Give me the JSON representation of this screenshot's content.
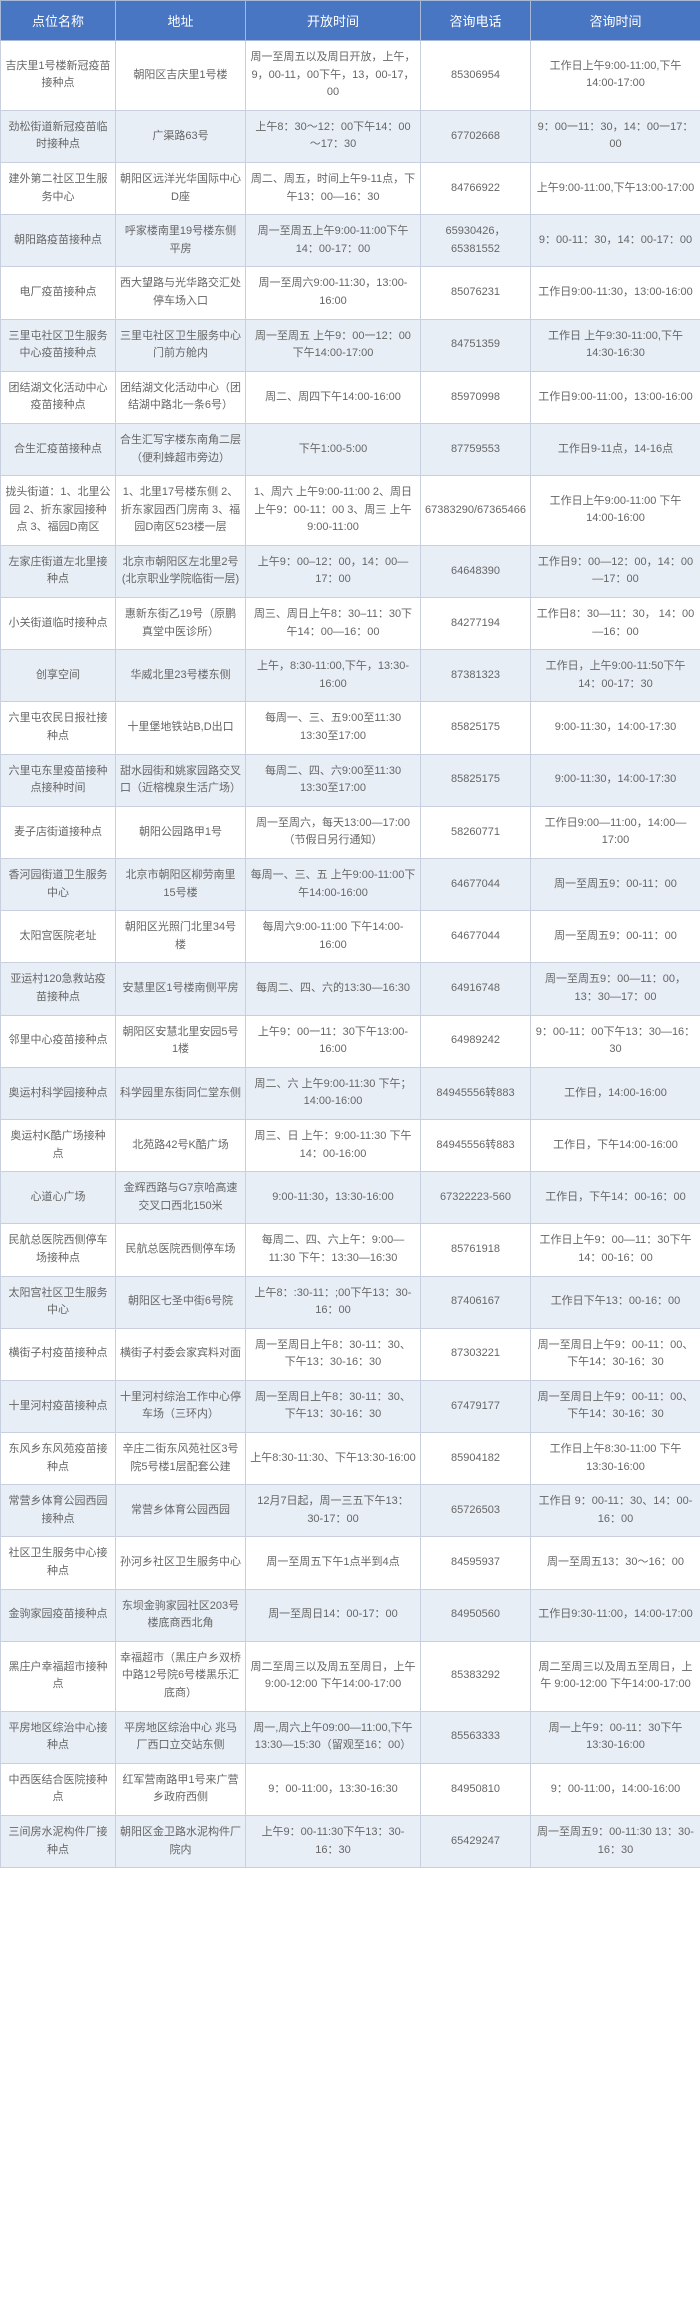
{
  "columns": [
    "点位名称",
    "地址",
    "开放时间",
    "咨询电话",
    "咨询时间"
  ],
  "rows": [
    [
      "吉庆里1号楼新冠疫苗接种点",
      "朝阳区吉庆里1号楼",
      "周一至周五以及周日开放，上午，9，00-11，00下午，13，00-17，00",
      "85306954",
      "工作日上午9:00-11:00,下午14:00-17:00"
    ],
    [
      "劲松街道新冠疫苗临时接种点",
      "广渠路63号",
      "上午8：30～12：00下午14：00～17：30",
      "67702668",
      "9：00一11：30，14：00一17：00"
    ],
    [
      "建外第二社区卫生服务中心",
      "朝阳区远洋光华国际中心D座",
      "周二、周五，时间上午9-11点，下午13：00—16：30",
      "84766922",
      "上午9:00-11:00,下午13:00-17:00"
    ],
    [
      "朝阳路疫苗接种点",
      "呼家楼南里19号楼东侧平房",
      "周一至周五上午9:00-11:00下午14：00-17：00",
      "65930426，65381552",
      "9：00-11：30，14：00-17：00"
    ],
    [
      "电厂疫苗接种点",
      "西大望路与光华路交汇处停车场入口",
      "周一至周六9:00-11:30，13:00-16:00",
      "85076231",
      "工作日9:00-11:30，13:00-16:00"
    ],
    [
      "三里屯社区卫生服务中心疫苗接种点",
      "三里屯社区卫生服务中心门前方舱内",
      "周一至周五 上午9：00一12：00下午14:00-17:00",
      "84751359",
      "工作日 上午9:30-11:00,下午14:30-16:30"
    ],
    [
      "团结湖文化活动中心疫苗接种点",
      "团结湖文化活动中心（团结湖中路北一条6号）",
      "周二、周四下午14:00-16:00",
      "85970998",
      "工作日9:00-11:00，13:00-16:00"
    ],
    [
      "合生汇疫苗接种点",
      "合生汇写字楼东南角二层（便利蜂超市旁边）",
      "下午1:00-5:00",
      "87759553",
      "工作日9-11点，14-16点"
    ],
    [
      "拢头街道：1、北里公园 2、折东家园接种点 3、福园D南区",
      "1、北里17号楼东侧 2、折东家园西门房南 3、福园D南区523楼一层",
      "1、周六 上午9:00-11:00  2、周日 上午9：00-11：00  3、周三 上午9:00-11:00",
      "67383290/67365466",
      "工作日上午9:00-11:00 下午14:00-16:00"
    ],
    [
      "左家庄街道左北里接种点",
      "北京市朝阳区左北里2号(北京职业学院临街一层)",
      "上午9：00–12：00，14：00—17：00",
      "64648390",
      "工作日9：00—12：00，14：00—17：00"
    ],
    [
      "小关街道临时接种点",
      "惠新东街乙19号（原鹏真堂中医诊所）",
      "周三、周日上午8：30–11：30下午14：00—16：00",
      "84277194",
      "工作日8：30—11：30，  14：00—16：00"
    ],
    [
      "创享空间",
      "华威北里23号楼东侧",
      "上午，8:30-11:00,下午，13:30-16:00",
      "87381323",
      "工作日，上午9:00-11:50下午14：00-17：30"
    ],
    [
      "六里屯农民日报社接种点",
      "十里堡地铁站B,D出口",
      "每周一、三、五9:00至11:30 13:30至17:00",
      "85825175",
      "9:00-11:30，14:00-17:30"
    ],
    [
      "六里屯东里疫苗接种点接种时间",
      "甜水园街和姚家园路交叉口（近榕槐泉生活广场）",
      "每周二、四、六9:00至11:30 13:30至17:00",
      "85825175",
      "9:00-11:30，14:00-17:30"
    ],
    [
      "麦子店街道接种点",
      "朝阳公园路甲1号",
      "周一至周六，每天13:00—17:00（节假日另行通知）",
      "58260771",
      "工作日9:00—11:00，14:00—17:00"
    ],
    [
      "香河园街道卫生服务中心",
      "北京市朝阳区柳劳南里15号楼",
      "每周一、三、五 上午9:00-11:00下午14:00-16:00",
      "64677044",
      "周一至周五9：00-11：00"
    ],
    [
      "太阳宫医院老址",
      "朝阳区光照门北里34号楼",
      "每周六9:00-11:00 下午14:00-16:00",
      "64677044",
      "周一至周五9：00-11：00"
    ],
    [
      "亚运村120急救站疫苗接种点",
      "安慧里区1号楼南侧平房",
      "每周二、四、六的13:30—16:30",
      "64916748",
      "周一至周五9：00—11：00，13：30—17：00"
    ],
    [
      "邻里中心疫苗接种点",
      "朝阳区安慧北里安园5号1楼",
      "上午9：00一11：30下午13:00-16:00",
      "64989242",
      "9：00-11：00下午13：30—16：30"
    ],
    [
      "奥运村科学园接种点",
      "科学园里东街同仁堂东侧",
      "周二、六 上午9:00-11:30 下午；14:00-16:00",
      "84945556转883",
      "工作日，14:00-16:00"
    ],
    [
      "奥运村K酷广场接种点",
      "北苑路42号K酷广场",
      "周三、日 上午：9:00-11:30 下午14：00-16:00",
      "84945556转883",
      "工作日，下午14:00-16:00"
    ],
    [
      "心道心广场",
      "金辉西路与G7京哈高速交叉口西北150米",
      "9:00-11:30，13:30-16:00",
      "67322223-560",
      "工作日，下午14：00-16：00"
    ],
    [
      "民航总医院西侧停车场接种点",
      "民航总医院西侧停车场",
      "每周二、四、六上午：9:00—11:30 下午：13:30—16:30",
      "85761918",
      "工作日上午9：00—11：30下午14：00-16：00"
    ],
    [
      "太阳宫社区卫生服务中心",
      "朝阳区七圣中街6号院",
      "上午8：:30-11：;00下午13：30-16：00",
      "87406167",
      "工作日下午13：00-16：00"
    ],
    [
      "横街子村疫苗接种点",
      "横街子村委会家宾料对面",
      "周一至周日上午8：30-11：30、下午13：30-16：30",
      "87303221",
      "周一至周日上午9：00-11：00、下午14：30-16：30"
    ],
    [
      "十里河村疫苗接种点",
      "十里河村综治工作中心停车场（三环内）",
      "周一至周日上午8：30-11：30、下午13：30-16：30",
      "67479177",
      "周一至周日上午9：00-11：00、下午14：30-16：30"
    ],
    [
      "东风乡东风苑疫苗接种点",
      "辛庄二街东风苑社区3号院5号楼1层配套公建",
      "上午8:30-11:30、下午13:30-16:00",
      "85904182",
      "工作日上午8:30-11:00 下午13:30-16:00"
    ],
    [
      "常营乡体育公园西园接种点",
      "常营乡体育公园西园",
      "12月7日起，周一三五下午13：30-17：00",
      "65726503",
      "工作日  9：00-11：30、14：00-16：00"
    ],
    [
      "社区卫生服务中心接种点",
      "孙河乡社区卫生服务中心",
      "周一至周五下午1点半到4点",
      "84595937",
      "周一至周五13：30～16：00"
    ],
    [
      "金驹家园疫苗接种点",
      "东坝金驹家园社区203号楼底商西北角",
      "周一至周日14：00-17：00",
      "84950560",
      "工作日9:30-11:00，14:00-17:00"
    ],
    [
      "黑庄户幸福超市接种点",
      "幸福超市（黑庄户乡双桥中路12号院6号楼黑乐汇底商）",
      "周二至周三以及周五至周日，上午 9:00-12:00 下午14:00-17:00",
      "85383292",
      "周二至周三以及周五至周日，上午 9:00-12:00 下午14:00-17:00"
    ],
    [
      "平房地区综治中心接种点",
      "平房地区综治中心 兆马厂西口立交站东侧",
      "周一,周六上午09:00—11:00,下午13:30—15:30（留观至16：00）",
      "85563333",
      "周一上午9：00-11：30下午13:30-16:00"
    ],
    [
      "中西医结合医院接种点",
      "红军营南路甲1号来广营乡政府西侧",
      "9：00-11:00，13:30-16:30",
      "84950810",
      "9：00-11:00，14:00-16:00"
    ],
    [
      "三间房水泥构件厂接种点",
      "朝阳区金卫路水泥构件厂院内",
      "上午9：00-11:30下午13：30-16：30",
      "65429247",
      "周一至周五9：00-11:30  13：30-16：30"
    ]
  ],
  "header_bg": "#4876c2",
  "header_color": "#ffffff",
  "row_colors": [
    "#ffffff",
    "#e8eef6"
  ],
  "border_color": "#c8d0e0",
  "text_color": "#666666"
}
